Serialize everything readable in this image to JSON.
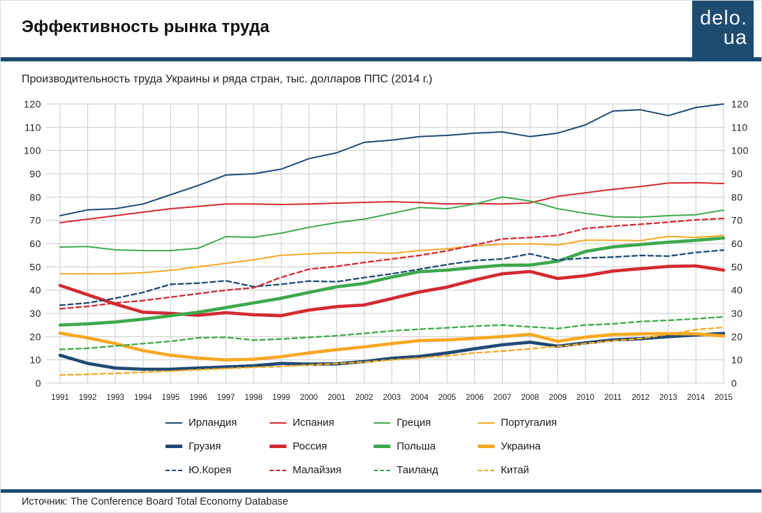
{
  "header": {
    "title": "Эффективность рынка труда",
    "logo_line1": "delo.",
    "logo_line2": "ua"
  },
  "subtitle": "Производительность труда Украины и ряда стран, тыс. долларов ППС (2014 г.)",
  "footer": {
    "source": "Источник: The Conference Board Total Economy Database"
  },
  "colors": {
    "accent_rule": "#1B4A70",
    "logo_background": "#1E4C70",
    "gridline": "#c9c9c9",
    "axis_text": "#222222",
    "navy": "#1F4A74",
    "red": "#D42A32",
    "green": "#3EA94D",
    "orange": "#F7A823"
  },
  "chart_data": {
    "type": "line",
    "title": "Производительность труда Украины и ряда стран, тыс. долларов ППС (2014 г.)",
    "xlabel": "",
    "ylabel": "",
    "ylim": [
      0,
      120
    ],
    "yticks": [
      0,
      10,
      20,
      30,
      40,
      50,
      60,
      70,
      80,
      90,
      100,
      110,
      120
    ],
    "grid": true,
    "legend_position": "bottom",
    "x": [
      1991,
      1992,
      1993,
      1994,
      1995,
      1996,
      1997,
      1998,
      1999,
      2000,
      2001,
      2002,
      2003,
      2004,
      2005,
      2006,
      2007,
      2008,
      2009,
      2010,
      2011,
      2012,
      2013,
      2014,
      2015
    ],
    "series": [
      {
        "key": "ireland",
        "name": "Ирландия",
        "color": "#1F4A74",
        "style": "thin",
        "values": [
          72,
          74.5,
          75,
          77,
          81,
          85,
          89.5,
          90,
          92,
          96.5,
          99,
          103.5,
          104.5,
          106,
          106.5,
          107.5,
          108,
          106,
          107.5,
          111,
          117,
          117.5,
          115,
          118.5,
          120
        ]
      },
      {
        "key": "spain",
        "name": "Испания",
        "color": "#D42A32",
        "style": "thin",
        "values": [
          69,
          70.5,
          72,
          73.5,
          75,
          76,
          77,
          77,
          76.8,
          77,
          77.4,
          77.7,
          78,
          77.6,
          77,
          77.2,
          77,
          77.5,
          80.3,
          81.8,
          83.3,
          84.5,
          86,
          86.2,
          85.8
        ]
      },
      {
        "key": "greece",
        "name": "Греция",
        "color": "#3EA94D",
        "style": "thin",
        "values": [
          58.5,
          58.7,
          57.3,
          57,
          57,
          58,
          63,
          62.7,
          64.5,
          67,
          69,
          70.5,
          73,
          75.5,
          75,
          77,
          80,
          78.3,
          75,
          73,
          71.5,
          71.3,
          72,
          72.4,
          74.4
        ]
      },
      {
        "key": "portugal",
        "name": "Португалия",
        "color": "#F7A823",
        "style": "thin",
        "values": [
          47,
          47,
          47,
          47.5,
          48.5,
          50,
          51.5,
          53,
          55,
          55.6,
          56,
          56.2,
          55.8,
          57,
          57.8,
          59,
          59.7,
          59.9,
          59.4,
          61.5,
          61.4,
          61.3,
          63.1,
          62.6,
          63.5
        ]
      },
      {
        "key": "georgia",
        "name": "Грузия",
        "color": "#1F4A74",
        "style": "thick",
        "values": [
          12,
          8.5,
          6.5,
          6,
          6,
          6.5,
          7,
          7.5,
          8.5,
          8.2,
          8.3,
          9.3,
          10.7,
          11.5,
          13,
          14.8,
          16.5,
          17.6,
          15.9,
          17.3,
          18.6,
          19.1,
          20,
          20.7,
          21.4
        ]
      },
      {
        "key": "russia",
        "name": "Россия",
        "color": "#D42A32",
        "style": "thick",
        "values": [
          42,
          38,
          34,
          30.5,
          30,
          29.2,
          30.3,
          29.4,
          29,
          31.4,
          32.9,
          33.6,
          36.4,
          39.2,
          41.3,
          44.4,
          47,
          48,
          45,
          46.2,
          48.2,
          49.2,
          50.2,
          50.4,
          48.6
        ]
      },
      {
        "key": "poland",
        "name": "Польша",
        "color": "#3EA94D",
        "style": "thick",
        "values": [
          25,
          25.5,
          26.3,
          27.5,
          29,
          30.5,
          32.5,
          34.5,
          36.5,
          39,
          41.4,
          42.9,
          45.6,
          47.9,
          48.6,
          49.7,
          50.7,
          50.8,
          52.4,
          56.6,
          58.6,
          59.6,
          60.6,
          61.4,
          62.4
        ]
      },
      {
        "key": "ukraine",
        "name": "Украина",
        "color": "#F7A823",
        "style": "thick",
        "values": [
          21.5,
          19.5,
          17,
          14,
          12,
          10.8,
          10,
          10.3,
          11.4,
          13,
          14.4,
          15.6,
          17,
          18.3,
          18.6,
          19.3,
          20,
          21,
          18,
          19.8,
          20.9,
          21.2,
          21.3,
          21.2,
          20.3
        ]
      },
      {
        "key": "skorea",
        "name": "Ю.Корея",
        "color": "#1F4A74",
        "style": "dashed",
        "values": [
          33.5,
          34.5,
          36.5,
          39,
          42.5,
          43,
          44,
          41.5,
          42.5,
          43.9,
          43.6,
          45.4,
          47,
          49,
          51,
          52.7,
          53.4,
          55.6,
          52.9,
          53.8,
          54.2,
          54.9,
          54.6,
          56.2,
          57.2
        ]
      },
      {
        "key": "malaysia",
        "name": "Малайзия",
        "color": "#D42A32",
        "style": "dashed",
        "values": [
          32,
          33,
          34.5,
          35.5,
          37,
          38.5,
          40,
          41,
          45.5,
          49,
          50.2,
          51.9,
          53.4,
          54.9,
          56.9,
          59.4,
          62,
          62.6,
          63.5,
          66.5,
          67.5,
          68.3,
          69.2,
          70.2,
          70.8
        ]
      },
      {
        "key": "thailand",
        "name": "Таиланд",
        "color": "#3EA94D",
        "style": "dashed",
        "values": [
          14.5,
          15,
          16,
          17,
          18,
          19.5,
          19.7,
          18.5,
          19,
          19.7,
          20.4,
          21.4,
          22.5,
          23.2,
          23.8,
          24.5,
          25,
          24.2,
          23.5,
          25,
          25.5,
          26.5,
          27,
          27.7,
          28.5
        ]
      },
      {
        "key": "china",
        "name": "Китай",
        "color": "#F7A823",
        "style": "dashed",
        "values": [
          3.5,
          3.8,
          4.2,
          4.7,
          5.2,
          5.8,
          6.3,
          6.8,
          7.2,
          7.8,
          8.4,
          9.1,
          10,
          10.8,
          11.8,
          13,
          13.8,
          14.8,
          15.8,
          17,
          18.2,
          19.2,
          21,
          23,
          24
        ]
      }
    ]
  }
}
